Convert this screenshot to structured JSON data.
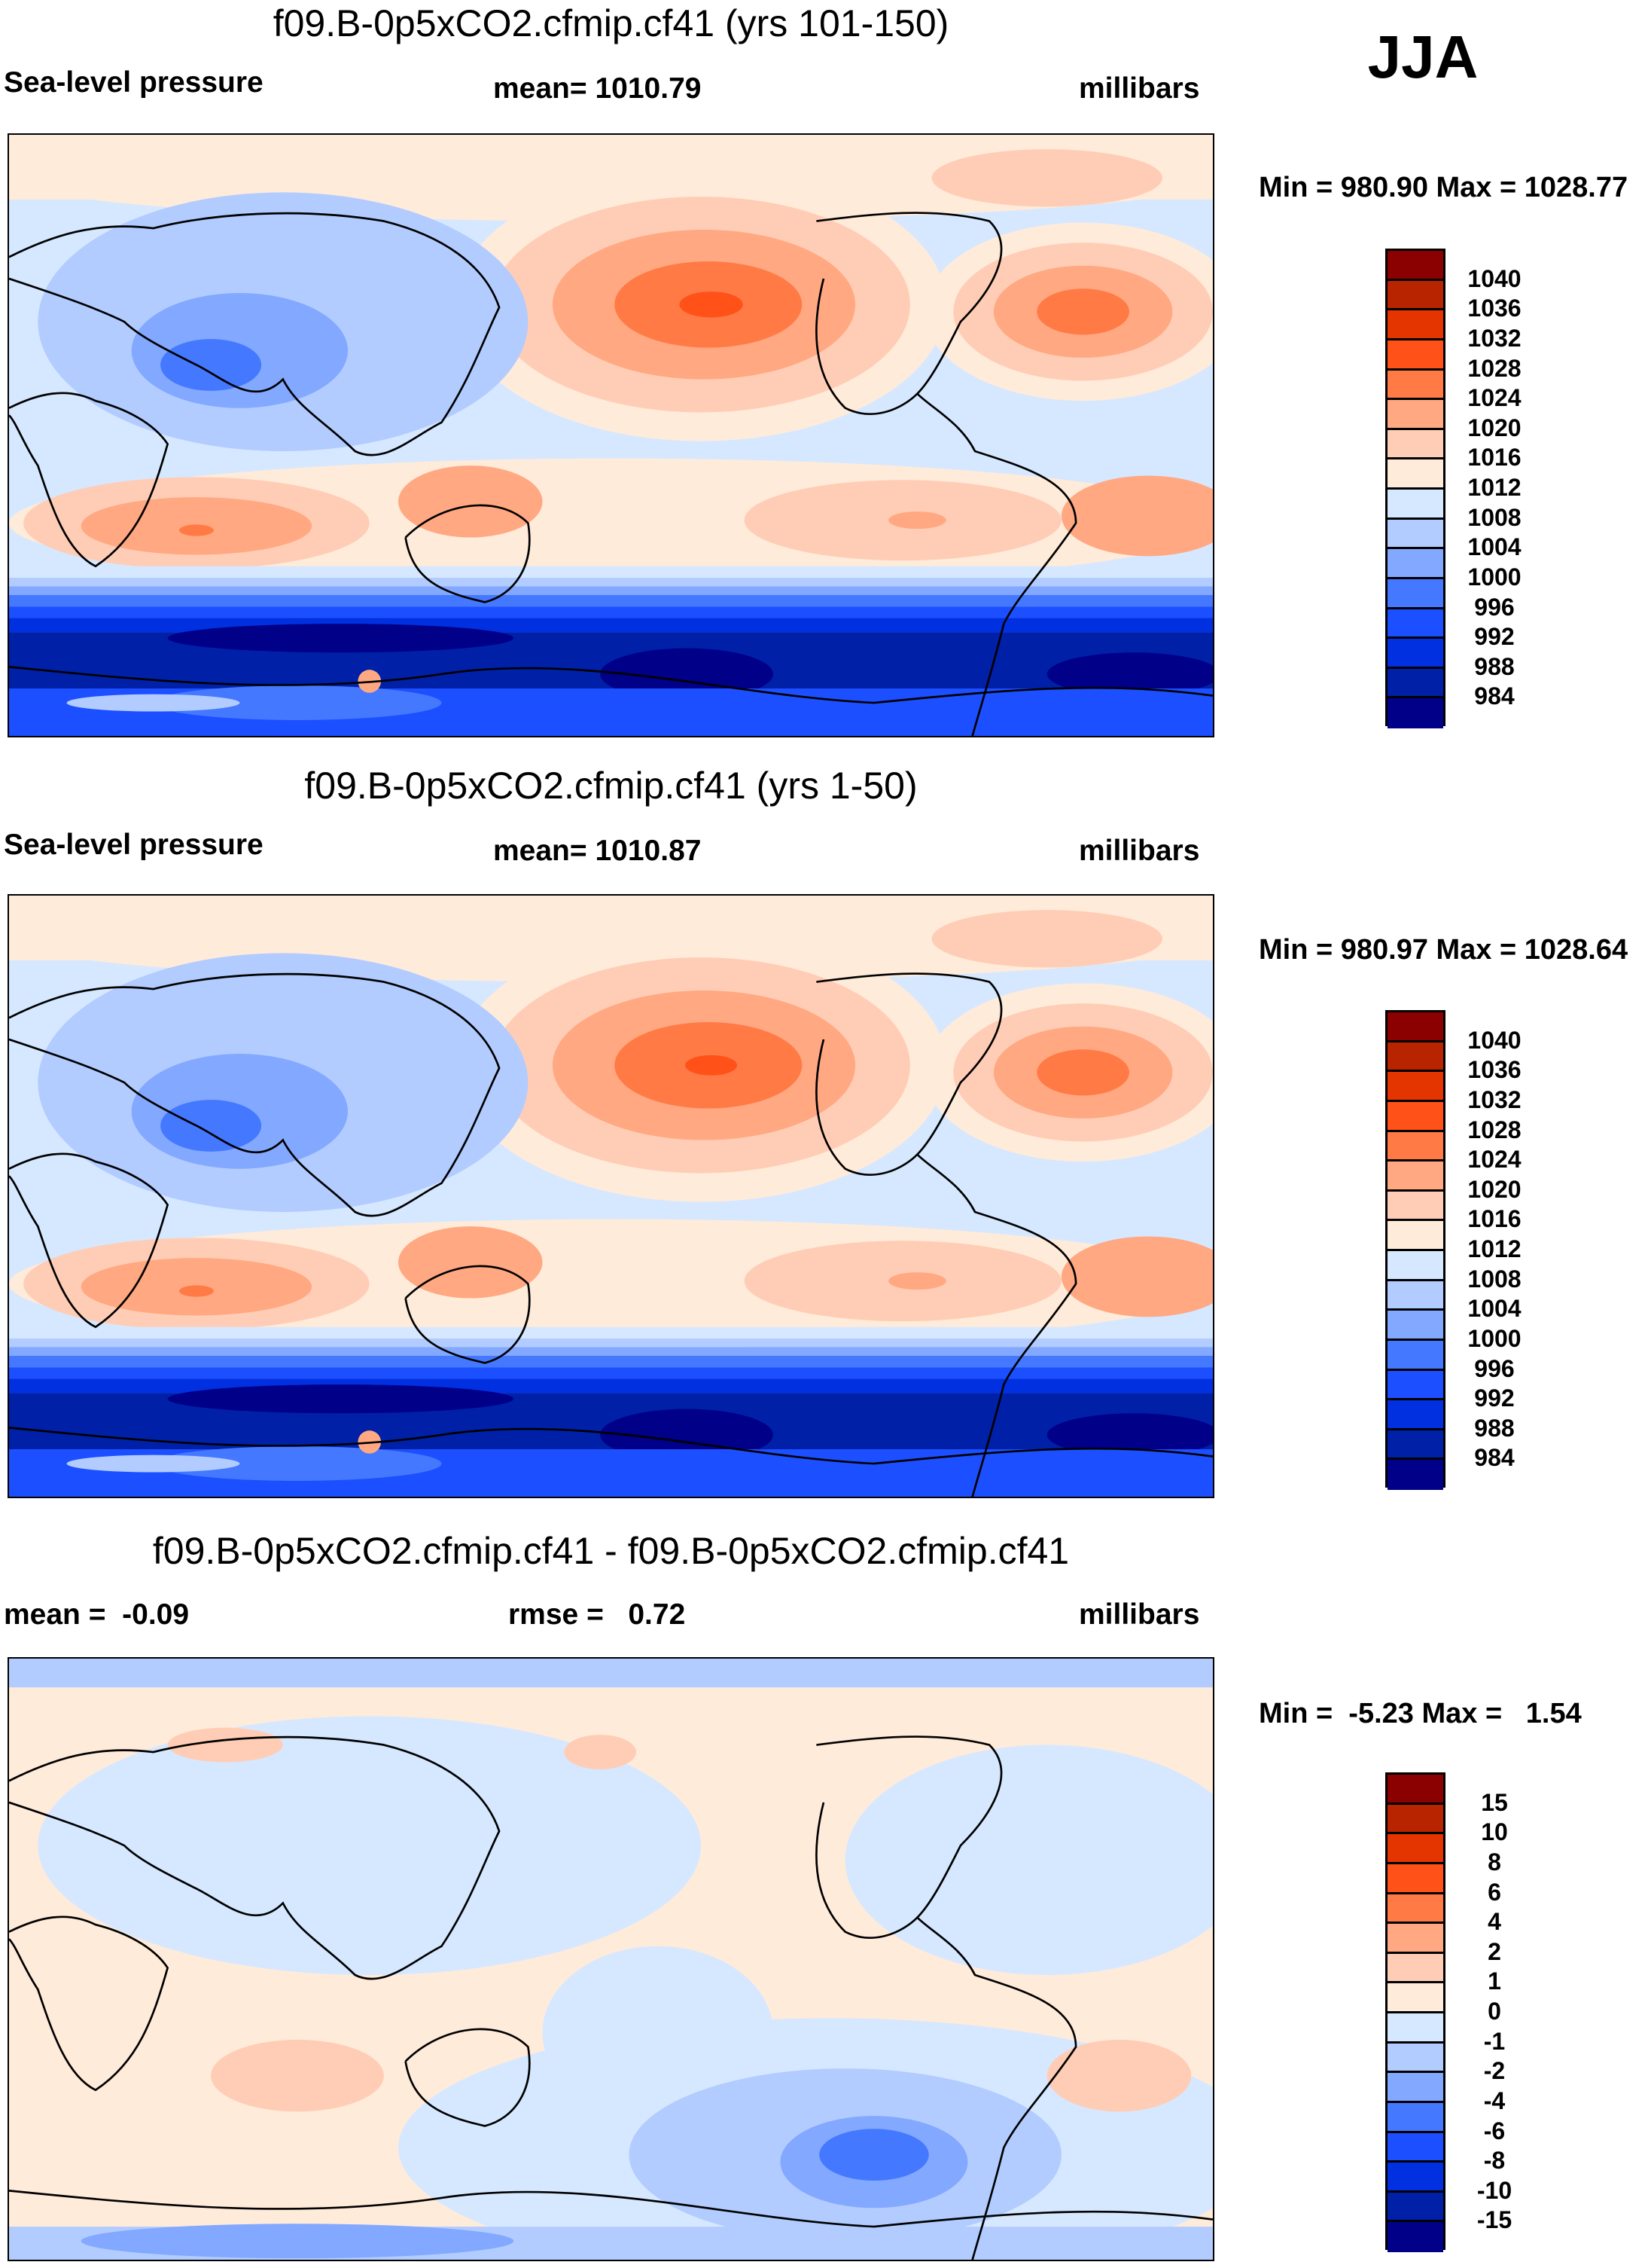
{
  "season": "JJA",
  "chart_data": [
    {
      "type": "heatmap",
      "title": "f09.B-0p5xCO2.cfmip.cf41 (yrs 101-150)",
      "left_label": "Sea-level pressure",
      "center_label": "mean= 1010.79",
      "units": "millibars",
      "minmax": "Min = 980.90 Max = 1028.77",
      "levels": [
        "1040",
        "1036",
        "1032",
        "1028",
        "1024",
        "1020",
        "1016",
        "1012",
        "1008",
        "1004",
        "1000",
        "996",
        "992",
        "988",
        "984"
      ],
      "colors": [
        "#8b0000",
        "#b82400",
        "#e43400",
        "#ff5118",
        "#ff7a45",
        "#ffa882",
        "#ffcdb5",
        "#ffebda",
        "#d6e8ff",
        "#b2ccff",
        "#82a8ff",
        "#4478ff",
        "#1c4fff",
        "#0030e0",
        "#0020a8",
        "#000088"
      ]
    },
    {
      "type": "heatmap",
      "title": "f09.B-0p5xCO2.cfmip.cf41 (yrs 1-50)",
      "left_label": "Sea-level pressure",
      "center_label": "mean= 1010.87",
      "units": "millibars",
      "minmax": "Min = 980.97 Max = 1028.64",
      "levels": [
        "1040",
        "1036",
        "1032",
        "1028",
        "1024",
        "1020",
        "1016",
        "1012",
        "1008",
        "1004",
        "1000",
        "996",
        "992",
        "988",
        "984"
      ],
      "colors": [
        "#8b0000",
        "#b82400",
        "#e43400",
        "#ff5118",
        "#ff7a45",
        "#ffa882",
        "#ffcdb5",
        "#ffebda",
        "#d6e8ff",
        "#b2ccff",
        "#82a8ff",
        "#4478ff",
        "#1c4fff",
        "#0030e0",
        "#0020a8",
        "#000088"
      ]
    },
    {
      "type": "heatmap",
      "title": "f09.B-0p5xCO2.cfmip.cf41 - f09.B-0p5xCO2.cfmip.cf41",
      "left_label": "mean =  -0.09",
      "center_label": "rmse =   0.72",
      "units": "millibars",
      "minmax": "Min =  -5.23 Max =   1.54",
      "levels": [
        "15",
        "10",
        "8",
        "6",
        "4",
        "2",
        "1",
        "0",
        "-1",
        "-2",
        "-4",
        "-6",
        "-8",
        "-10",
        "-15"
      ],
      "colors": [
        "#8b0000",
        "#b82400",
        "#e43400",
        "#ff5118",
        "#ff7a45",
        "#ffa882",
        "#ffcdb5",
        "#ffebda",
        "#d6e8ff",
        "#b2ccff",
        "#82a8ff",
        "#4478ff",
        "#1c4fff",
        "#0030e0",
        "#0020a8",
        "#000088"
      ]
    }
  ]
}
